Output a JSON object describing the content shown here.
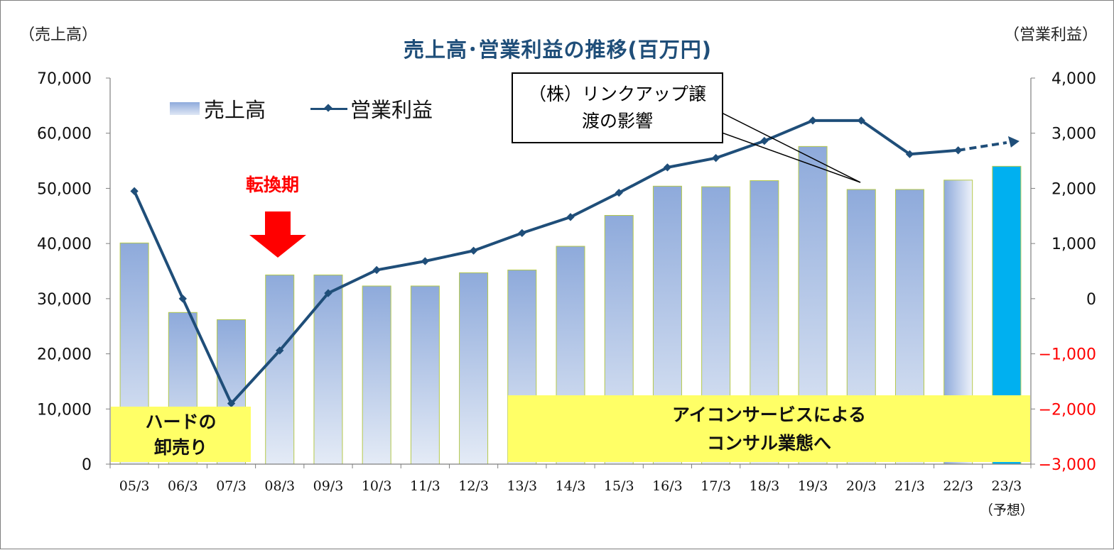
{
  "chart_data": {
    "type": "bar+line",
    "title": "売上高･営業利益の推移(百万円)",
    "left_axis_label": "（売上高）",
    "right_axis_label": "（営業利益）",
    "categories": [
      "05/3",
      "06/3",
      "07/3",
      "08/3",
      "09/3",
      "10/3",
      "11/3",
      "12/3",
      "13/3",
      "14/3",
      "15/3",
      "16/3",
      "17/3",
      "18/3",
      "19/3",
      "20/3",
      "21/3",
      "22/3",
      "23/3"
    ],
    "forecast_category_note": "（予想）",
    "series": [
      {
        "name": "売上高",
        "axis": "left",
        "type": "bar",
        "values": [
          40100,
          27500,
          26200,
          34300,
          34300,
          32300,
          32300,
          34700,
          35200,
          39500,
          45100,
          50400,
          50300,
          51400,
          57600,
          49800,
          49800,
          51500,
          54000
        ]
      },
      {
        "name": "営業利益",
        "axis": "right",
        "type": "line",
        "values": [
          1950,
          0,
          -1900,
          -940,
          100,
          520,
          680,
          870,
          1190,
          1480,
          1920,
          2380,
          2550,
          2860,
          3230,
          3230,
          2620,
          2690,
          2830
        ],
        "forecast_from_index": 17
      }
    ],
    "left_axis": {
      "min": 0,
      "max": 70000,
      "ticks": [
        "0",
        "10,000",
        "20,000",
        "30,000",
        "40,000",
        "50,000",
        "60,000",
        "70,000"
      ]
    },
    "right_axis": {
      "min": -3000,
      "max": 4000,
      "ticks": [
        "−3,000",
        "−2,000",
        "−1,000",
        "0",
        "1,000",
        "2,000",
        "3,000",
        "4,000"
      ],
      "negative_color": "#ff0000"
    },
    "annotations": {
      "transition": "転換期",
      "callout_line1": "（株）リンクアップ譲",
      "callout_line2": "渡の影響",
      "box_left_line1": "ハードの",
      "box_left_line2": "卸売り",
      "box_right_line1": "アイコンサービスによる",
      "box_right_line2": "コンサル業態へ"
    },
    "grid": false,
    "legend_position": "top-left"
  },
  "colors": {
    "bar_top": "#8eaadb",
    "bar_bottom": "#e4ebf6",
    "bar_outline": "#b5c94a",
    "forecast_bar": "#00b0f0",
    "line": "#1f4e79",
    "title": "#1f4e79",
    "arrow": "#ff0000",
    "note_box": "#ffff66"
  }
}
